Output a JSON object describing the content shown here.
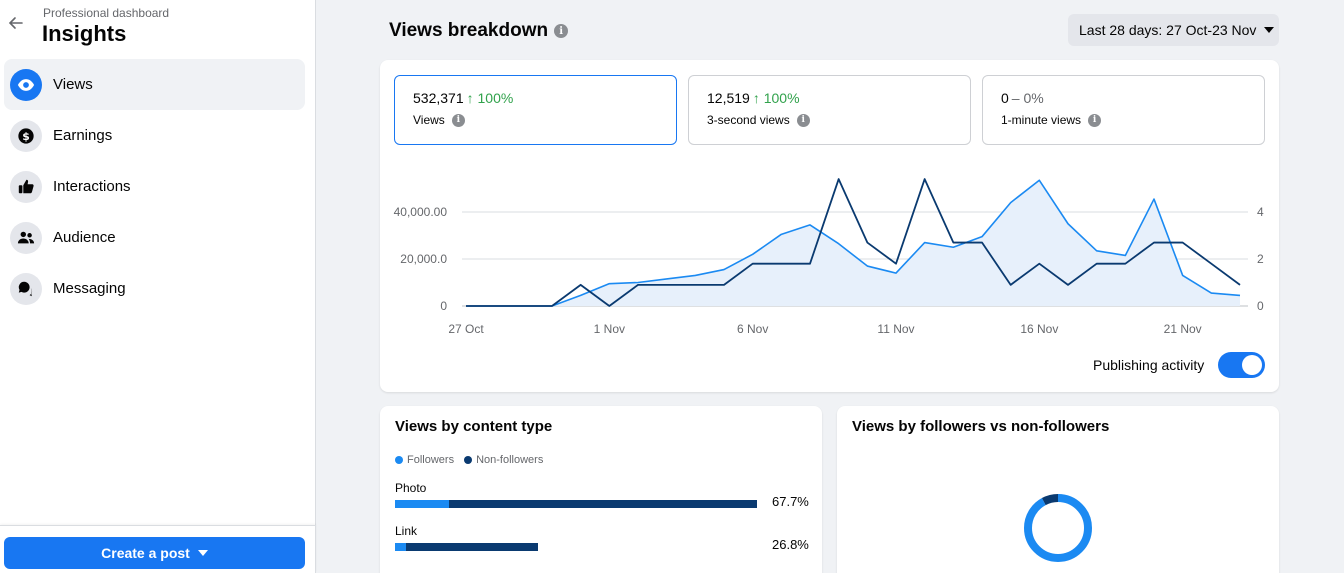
{
  "sidebar": {
    "header_label": "Professional dashboard",
    "title": "Insights",
    "items": [
      {
        "label": "Views",
        "icon": "eye-icon",
        "active": true
      },
      {
        "label": "Earnings",
        "icon": "dollar-icon",
        "active": false
      },
      {
        "label": "Interactions",
        "icon": "thumbs-up-icon",
        "active": false
      },
      {
        "label": "Audience",
        "icon": "people-icon",
        "active": false
      },
      {
        "label": "Messaging",
        "icon": "chat-bubbles-icon",
        "active": false
      }
    ],
    "create_button": "Create a post"
  },
  "main": {
    "title": "Views breakdown",
    "date_range": "Last 28 days: 27 Oct-23 Nov",
    "metrics": [
      {
        "value": "532,371",
        "change": "↑ 100%",
        "label": "Views"
      },
      {
        "value": "12,519",
        "change": "↑ 100%",
        "label": "3-second views"
      },
      {
        "value": "0",
        "change": "– 0%",
        "label": "1-minute views"
      }
    ],
    "publishing_label": "Publishing activity",
    "publishing_on": true
  },
  "chart_data": {
    "type": "line",
    "x_labels": [
      "27 Oct",
      "1 Nov",
      "6 Nov",
      "11 Nov",
      "16 Nov",
      "21 Nov"
    ],
    "left_ticks": [
      "0",
      "20,000.0",
      "40,000.00"
    ],
    "right_ticks": [
      "0",
      "2",
      "4"
    ],
    "ylim_left": [
      0,
      40000
    ],
    "ylim_right": [
      0,
      4
    ],
    "x": [
      "27 Oct",
      "28 Oct",
      "29 Oct",
      "30 Oct",
      "31 Oct",
      "1 Nov",
      "2 Nov",
      "3 Nov",
      "4 Nov",
      "5 Nov",
      "6 Nov",
      "7 Nov",
      "8 Nov",
      "9 Nov",
      "10 Nov",
      "11 Nov",
      "12 Nov",
      "13 Nov",
      "14 Nov",
      "15 Nov",
      "16 Nov",
      "17 Nov",
      "18 Nov",
      "19 Nov",
      "20 Nov",
      "21 Nov",
      "22 Nov",
      "23 Nov"
    ],
    "series": [
      {
        "name": "Views",
        "axis": "left",
        "color": "#1b8af2",
        "style": "area",
        "values": [
          0,
          0,
          0,
          0,
          4500,
          9500,
          10000,
          11500,
          13000,
          15500,
          22000,
          30500,
          34500,
          26500,
          17000,
          14000,
          27000,
          25000,
          29500,
          44000,
          53500,
          35000,
          23500,
          21500,
          45500,
          13000,
          5500,
          4500
        ]
      },
      {
        "name": "Publishing activity",
        "axis": "right",
        "color": "#0a3a70",
        "style": "line",
        "values": [
          0,
          0,
          0,
          0,
          0.9,
          0,
          0.9,
          0.9,
          0.9,
          0.9,
          1.8,
          1.8,
          1.8,
          5.4,
          2.7,
          1.8,
          5.4,
          2.7,
          2.7,
          0.9,
          1.8,
          0.9,
          1.8,
          1.8,
          2.7,
          2.7,
          1.8,
          0.9
        ]
      }
    ]
  },
  "content_type": {
    "title": "Views by content type",
    "legend": [
      {
        "label": "Followers",
        "color": "#1b8af2"
      },
      {
        "label": "Non-followers",
        "color": "#0a3a70"
      }
    ],
    "rows": [
      {
        "label": "Photo",
        "pct": "67.7%",
        "followers": 0.15,
        "non_followers": 0.85,
        "share": 0.677
      },
      {
        "label": "Link",
        "pct": "26.8%",
        "followers": 0.08,
        "non_followers": 0.92,
        "share": 0.268
      }
    ]
  },
  "followers_card": {
    "title": "Views by followers vs non-followers",
    "followers_share": 0.08,
    "non_followers_share": 0.92
  }
}
